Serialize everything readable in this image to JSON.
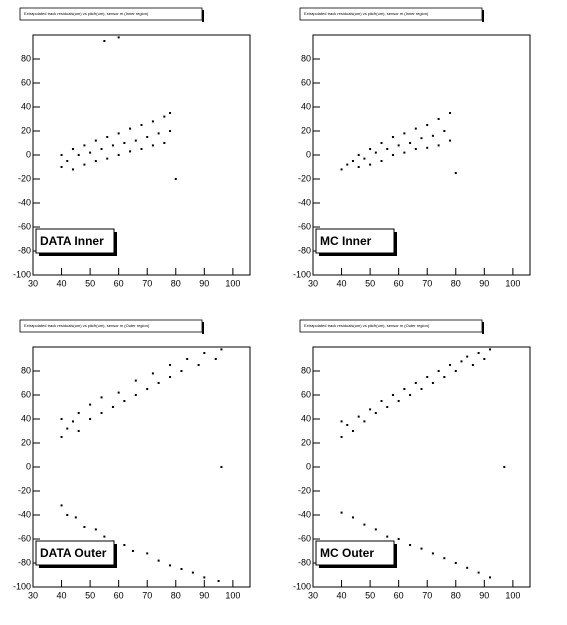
{
  "chart_data": [
    {
      "type": "scatter",
      "title": "Extrapolated track residuals(um) vs pitch(um), sensor m (Inner region)",
      "label": "DATA Inner",
      "color": "#000000",
      "xlim": [
        30,
        106
      ],
      "ylim": [
        -100,
        100
      ],
      "xticks": [
        30,
        40,
        50,
        60,
        70,
        80,
        90,
        100
      ],
      "yticks": [
        -100,
        -80,
        -60,
        -40,
        -20,
        0,
        20,
        40,
        60,
        80
      ],
      "x": [
        40,
        40,
        42,
        44,
        44,
        46,
        48,
        48,
        50,
        52,
        52,
        54,
        56,
        56,
        58,
        60,
        60,
        62,
        64,
        64,
        66,
        68,
        68,
        70,
        72,
        72,
        74,
        76,
        76,
        78,
        78,
        80,
        55,
        60
      ],
      "y": [
        -10,
        0,
        -5,
        -12,
        5,
        0,
        -8,
        8,
        2,
        -5,
        12,
        5,
        -3,
        15,
        8,
        0,
        18,
        10,
        3,
        22,
        12,
        5,
        25,
        15,
        8,
        28,
        18,
        10,
        32,
        20,
        35,
        -20,
        95,
        98
      ]
    },
    {
      "type": "scatter",
      "title": "Extrapolated track residuals(um) vs pitch(um), sensor m (Inner region)",
      "label": "MC Inner",
      "color": "#000000",
      "xlim": [
        30,
        106
      ],
      "ylim": [
        -100,
        100
      ],
      "xticks": [
        30,
        40,
        50,
        60,
        70,
        80,
        90,
        100
      ],
      "yticks": [
        -100,
        -80,
        -60,
        -40,
        -20,
        0,
        20,
        40,
        60,
        80
      ],
      "x": [
        40,
        42,
        44,
        46,
        46,
        48,
        50,
        50,
        52,
        54,
        54,
        56,
        58,
        58,
        60,
        62,
        62,
        64,
        66,
        66,
        68,
        70,
        70,
        72,
        74,
        74,
        76,
        78,
        78,
        80
      ],
      "y": [
        -12,
        -8,
        -5,
        -10,
        0,
        -3,
        -8,
        5,
        2,
        -5,
        10,
        5,
        0,
        15,
        8,
        2,
        18,
        10,
        5,
        22,
        14,
        6,
        25,
        16,
        8,
        30,
        20,
        12,
        35,
        -15
      ]
    },
    {
      "type": "scatter",
      "title": "Extrapolated track residuals(um) vs pitch(um), sensor m (Outer region)",
      "label": "DATA Outer",
      "color": "#000000",
      "xlim": [
        30,
        106
      ],
      "ylim": [
        -100,
        100
      ],
      "xticks": [
        30,
        40,
        50,
        60,
        70,
        80,
        90,
        100
      ],
      "yticks": [
        -100,
        -80,
        -60,
        -40,
        -20,
        0,
        20,
        40,
        60,
        80
      ],
      "x": [
        40,
        40,
        42,
        44,
        46,
        46,
        50,
        50,
        54,
        54,
        58,
        60,
        62,
        66,
        66,
        70,
        72,
        74,
        78,
        78,
        82,
        84,
        88,
        90,
        94,
        96,
        40,
        42,
        45,
        48,
        52,
        55,
        58,
        62,
        65,
        70,
        74,
        78,
        82,
        86,
        90,
        95,
        96
      ],
      "y": [
        25,
        40,
        32,
        38,
        30,
        45,
        40,
        52,
        45,
        58,
        50,
        62,
        55,
        60,
        72,
        65,
        78,
        70,
        75,
        85,
        80,
        90,
        85,
        95,
        90,
        98,
        -32,
        -40,
        -42,
        -50,
        -52,
        -58,
        -62,
        -65,
        -70,
        -72,
        -78,
        -82,
        -85,
        -88,
        -92,
        -95,
        0
      ]
    },
    {
      "type": "scatter",
      "title": "Extrapolated track residuals(um) vs pitch(um), sensor m (Outer region)",
      "label": "MC Outer",
      "color": "#000000",
      "xlim": [
        30,
        106
      ],
      "ylim": [
        -100,
        100
      ],
      "xticks": [
        30,
        40,
        50,
        60,
        70,
        80,
        90,
        100
      ],
      "yticks": [
        -100,
        -80,
        -60,
        -40,
        -20,
        0,
        20,
        40,
        60,
        80
      ],
      "x": [
        40,
        40,
        42,
        44,
        46,
        48,
        50,
        52,
        54,
        56,
        58,
        60,
        62,
        64,
        66,
        68,
        70,
        72,
        74,
        76,
        78,
        80,
        82,
        84,
        86,
        88,
        90,
        92,
        40,
        44,
        48,
        52,
        56,
        60,
        64,
        68,
        72,
        76,
        80,
        84,
        88,
        92,
        97
      ],
      "y": [
        25,
        38,
        35,
        30,
        42,
        38,
        48,
        45,
        55,
        50,
        60,
        55,
        65,
        60,
        70,
        65,
        75,
        70,
        80,
        75,
        85,
        80,
        88,
        92,
        85,
        95,
        90,
        98,
        -38,
        -42,
        -48,
        -52,
        -58,
        -60,
        -65,
        -68,
        -72,
        -76,
        -80,
        -84,
        -88,
        -92,
        0
      ]
    }
  ]
}
